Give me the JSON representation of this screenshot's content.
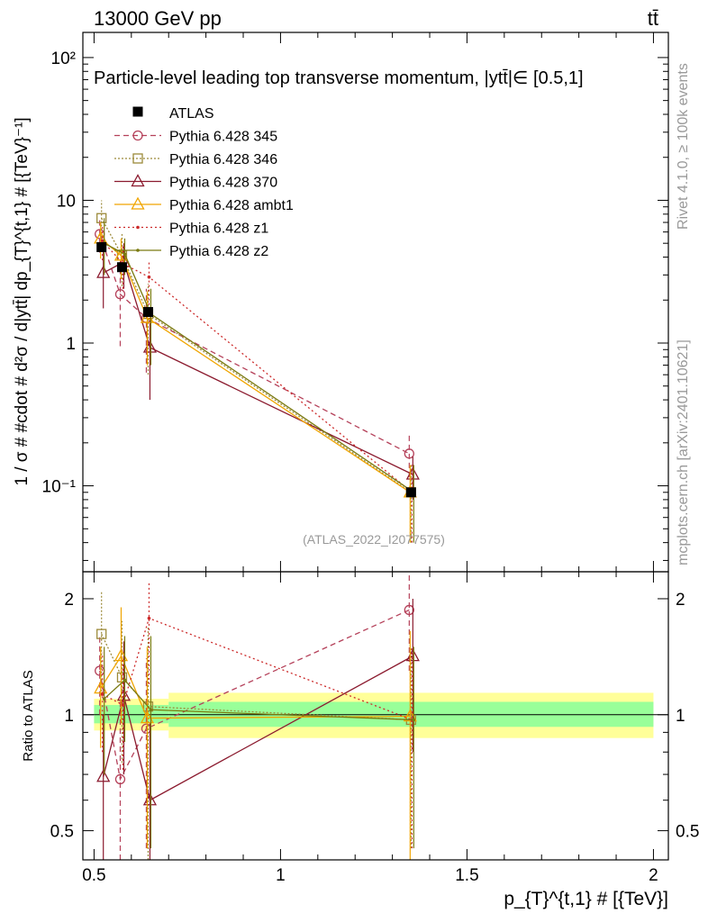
{
  "header": {
    "left": "13000 GeV pp",
    "right": "tt̄"
  },
  "side_labels": {
    "rivet": "Rivet 4.1.0, ≥ 100k events",
    "mcplots": "mcplots.cern.ch [arXiv:2401.10621]"
  },
  "watermark": "(ATLAS_2022_I2077575)",
  "chart_data": {
    "type": "line",
    "title": "Particle-level leading top transverse momentum, |ytt̄|∈ [0.5,1]",
    "xlabel": "p_{T}^{t,1} # [{TeV}]",
    "ylabel": "1 / σ # #cdot # d²σ / d|ytt̄| dp_{T}^{t,1} # [{TeV}⁻¹]",
    "ratio_ylabel": "Ratio to ATLAS",
    "xlim": [
      0.47,
      2.04
    ],
    "ylim": [
      0.025,
      150
    ],
    "yscale": "log",
    "ratio_ylim": [
      0.42,
      2.35
    ],
    "ratio_yscale": "log",
    "x_ticks": [
      {
        "v": 0.5,
        "label": "0.5"
      },
      {
        "v": 1,
        "label": "1"
      },
      {
        "v": 1.5,
        "label": "1.5"
      },
      {
        "v": 2,
        "label": "2"
      }
    ],
    "y_ticks": [
      {
        "v": 100,
        "label": "10²"
      },
      {
        "v": 10,
        "label": "10"
      },
      {
        "v": 1,
        "label": "1"
      },
      {
        "v": 0.1,
        "label": "10⁻¹"
      }
    ],
    "ratio_ticks": [
      {
        "v": 2,
        "label": "2"
      },
      {
        "v": 1,
        "label": "1"
      },
      {
        "v": 0.5,
        "label": "0.5"
      }
    ],
    "bands": [
      {
        "x0": 0.5,
        "x1": 0.7,
        "yellow": [
          0.91,
          1.1
        ],
        "green": [
          0.95,
          1.06
        ]
      },
      {
        "x0": 0.7,
        "x1": 2.0,
        "yellow": [
          0.87,
          1.14
        ],
        "green": [
          0.93,
          1.08
        ]
      }
    ],
    "data": {
      "name": "ATLAS",
      "x": [
        0.52,
        0.575,
        0.645,
        1.35
      ],
      "y": [
        4.7,
        3.4,
        1.65,
        0.09
      ]
    },
    "series": [
      {
        "name": "Pythia 6.428 345",
        "color": "#b5415a",
        "dash": "6,4",
        "marker": "circle",
        "x": [
          0.52,
          0.575,
          0.645,
          1.35
        ],
        "y": [
          5.8,
          2.2,
          1.5,
          0.168
        ],
        "ylo": [
          4.3,
          0.95,
          0.62,
          0.115
        ],
        "yhi": [
          7.3,
          3.5,
          2.4,
          0.235
        ],
        "ratio": [
          1.3,
          0.68,
          0.92,
          1.87
        ],
        "rlo": [
          1.0,
          0.28,
          0.45,
          1.3
        ],
        "rhi": [
          1.6,
          1.1,
          1.4,
          2.4
        ]
      },
      {
        "name": "Pythia 6.428 346",
        "color": "#9c8a3a",
        "dash": "2,2",
        "marker": "square",
        "x": [
          0.52,
          0.575,
          0.645,
          1.35
        ],
        "y": [
          7.5,
          4.1,
          1.6,
          0.09
        ],
        "ylo": [
          5.2,
          2.5,
          0.6,
          0.04
        ],
        "yhi": [
          10.0,
          5.8,
          2.6,
          0.14
        ],
        "ratio": [
          1.62,
          1.25,
          1.05,
          0.97
        ],
        "rlo": [
          1.15,
          0.75,
          0.4,
          0.45
        ],
        "rhi": [
          2.1,
          1.75,
          1.7,
          1.5
        ]
      },
      {
        "name": "Pythia 6.428 370",
        "color": "#8b1a2e",
        "dash": "",
        "marker": "triangle",
        "x": [
          0.52,
          0.575,
          0.645,
          1.35
        ],
        "y": [
          3.1,
          3.7,
          0.93,
          0.12
        ],
        "ylo": [
          1.75,
          2.4,
          0.4,
          0.08
        ],
        "yhi": [
          4.5,
          5.0,
          1.5,
          0.16
        ],
        "ratio": [
          0.69,
          1.12,
          0.6,
          1.42
        ],
        "rlo": [
          0.38,
          0.7,
          0.3,
          0.8
        ],
        "rhi": [
          1.0,
          1.55,
          0.95,
          2.0
        ]
      },
      {
        "name": "Pythia 6.428 ambt1",
        "color": "#f0a500",
        "dash": "",
        "marker": "triangle",
        "x": [
          0.52,
          0.575,
          0.645,
          1.35
        ],
        "y": [
          5.4,
          4.1,
          1.5,
          0.09
        ],
        "ylo": [
          3.9,
          2.8,
          0.7,
          0.04
        ],
        "yhi": [
          7.0,
          5.4,
          2.3,
          0.14
        ],
        "ratio": [
          1.17,
          1.42,
          0.98,
          0.99
        ],
        "rlo": [
          0.82,
          0.95,
          0.45,
          0.35
        ],
        "rhi": [
          1.5,
          1.9,
          1.5,
          1.65
        ]
      },
      {
        "name": "Pythia 6.428 z1",
        "color": "#cc2a2a",
        "dash": "2,3",
        "marker": "dot",
        "x": [
          0.52,
          0.575,
          0.645,
          1.35
        ],
        "y": [
          5.2,
          3.6,
          2.9,
          0.09
        ],
        "ylo": [
          3.8,
          2.4,
          1.6,
          0.04
        ],
        "yhi": [
          6.6,
          4.8,
          3.8,
          0.14
        ],
        "ratio": [
          1.13,
          1.06,
          1.78,
          0.97
        ],
        "rlo": [
          0.8,
          0.72,
          1.2,
          0.45
        ],
        "rhi": [
          1.45,
          1.4,
          2.2,
          1.5
        ]
      },
      {
        "name": "Pythia 6.428 z2",
        "color": "#7a7a10",
        "dash": "",
        "marker": "dot",
        "x": [
          0.52,
          0.575,
          0.645,
          1.35
        ],
        "y": [
          5.0,
          4.2,
          1.6,
          0.09
        ],
        "ylo": [
          3.0,
          3.0,
          0.7,
          0.04
        ],
        "yhi": [
          7.5,
          5.4,
          2.4,
          0.14
        ],
        "ratio": [
          1.1,
          1.23,
          1.03,
          0.97
        ],
        "rlo": [
          0.7,
          0.85,
          0.45,
          0.45
        ],
        "rhi": [
          1.5,
          1.6,
          1.6,
          1.5
        ]
      }
    ]
  }
}
